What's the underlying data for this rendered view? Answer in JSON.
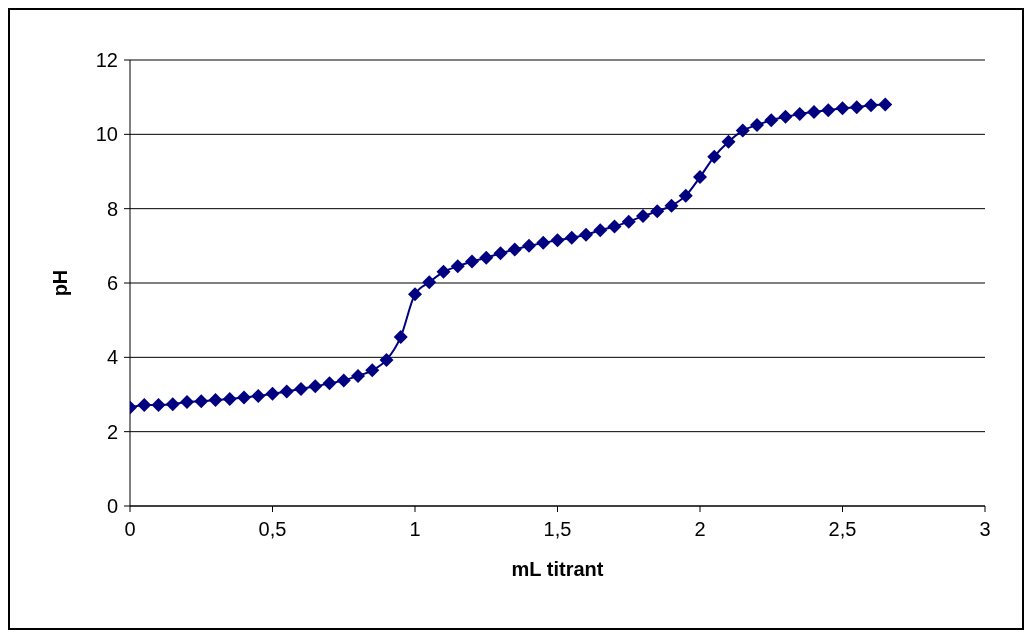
{
  "chart_data": {
    "type": "line",
    "xlabel": "mL titrant",
    "ylabel": "pH",
    "x": [
      0,
      0.05,
      0.1,
      0.15,
      0.2,
      0.25,
      0.3,
      0.35,
      0.4,
      0.45,
      0.5,
      0.55,
      0.6,
      0.65,
      0.7,
      0.75,
      0.8,
      0.85,
      0.9,
      0.95,
      1,
      1.05,
      1.1,
      1.15,
      1.2,
      1.25,
      1.3,
      1.35,
      1.4,
      1.45,
      1.5,
      1.55,
      1.6,
      1.65,
      1.7,
      1.75,
      1.8,
      1.85,
      1.9,
      1.95,
      2,
      2.05,
      2.1,
      2.15,
      2.2,
      2.25,
      2.3,
      2.35,
      2.4,
      2.45,
      2.5,
      2.55,
      2.6,
      2.65
    ],
    "series": [
      {
        "color": "#000080",
        "values": [
          2.65,
          2.72,
          2.72,
          2.74,
          2.8,
          2.82,
          2.85,
          2.88,
          2.92,
          2.96,
          3.02,
          3.08,
          3.15,
          3.22,
          3.3,
          3.38,
          3.5,
          3.65,
          3.93,
          4.55,
          5.7,
          6.02,
          6.3,
          6.45,
          6.58,
          6.68,
          6.8,
          6.9,
          7.0,
          7.08,
          7.15,
          7.22,
          7.3,
          7.42,
          7.52,
          7.65,
          7.8,
          7.93,
          8.08,
          8.35,
          8.85,
          9.4,
          9.8,
          10.1,
          10.25,
          10.38,
          10.47,
          10.55,
          10.6,
          10.65,
          10.7,
          10.73,
          10.78,
          10.8
        ]
      }
    ],
    "xlim": [
      0,
      3
    ],
    "xticks": [
      0,
      {
        "value": 0.5,
        "label": "0,5"
      },
      1,
      {
        "value": 1.5,
        "label": "1,5"
      },
      2,
      {
        "value": 2.5,
        "label": "2,5"
      },
      3
    ],
    "ylim": [
      0,
      12
    ],
    "yticks": [
      0,
      2,
      4,
      6,
      8,
      10,
      12
    ],
    "grid": "y",
    "legend": false,
    "marker": "diamond",
    "line_style": "solid"
  }
}
